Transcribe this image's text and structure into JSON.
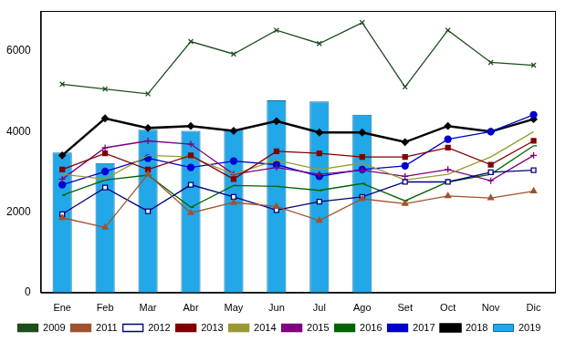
{
  "chart_data": {
    "type": "bar",
    "categories": [
      "Ene",
      "Feb",
      "Mar",
      "Abr",
      "May",
      "Jun",
      "Jul",
      "Ago",
      "Set",
      "Oct",
      "Nov",
      "Dic"
    ],
    "ylim": [
      0,
      7000
    ],
    "yticks": [
      0,
      2000,
      4000,
      6000
    ],
    "grid": false,
    "legend": "bottom",
    "series": [
      {
        "name": "2019",
        "type": "bar",
        "color": "#22a7e8",
        "values": [
          3480,
          3220,
          4050,
          4020,
          4050,
          4780,
          4750,
          4420,
          null,
          null,
          null,
          null
        ]
      },
      {
        "name": "2009",
        "type": "line",
        "color": "#1e4d1e",
        "marker": "cross",
        "values": [
          5180,
          5060,
          4940,
          6240,
          5930,
          6520,
          6190,
          6710,
          5110,
          6520,
          5720,
          5650
        ]
      },
      {
        "name": "2011",
        "type": "line",
        "color": "#a0522d",
        "marker": "triangle",
        "values": [
          1860,
          1620,
          2940,
          1980,
          2240,
          2140,
          1790,
          2330,
          2210,
          2400,
          2350,
          2520
        ]
      },
      {
        "name": "2012",
        "type": "line",
        "color": "#000080",
        "marker": "open_square",
        "values": [
          1950,
          2610,
          2020,
          2680,
          2380,
          2050,
          2260,
          2380,
          2750,
          2750,
          2990,
          3040
        ]
      },
      {
        "name": "2013",
        "type": "line",
        "color": "#800000",
        "marker": "square",
        "values": [
          3060,
          3460,
          3060,
          3410,
          2820,
          3510,
          3460,
          3370,
          3370,
          3600,
          3180,
          3770
        ]
      },
      {
        "name": "2014",
        "type": "line",
        "color": "#999933",
        "marker": "none",
        "values": [
          2940,
          2820,
          3410,
          3370,
          2940,
          3290,
          3060,
          3220,
          2800,
          2940,
          3370,
          4000
        ]
      },
      {
        "name": "2015",
        "type": "line",
        "color": "#800080",
        "marker": "plus",
        "values": [
          2820,
          3600,
          3770,
          3690,
          2940,
          3110,
          2940,
          3040,
          2890,
          3060,
          2780,
          3410
        ]
      },
      {
        "name": "2016",
        "type": "line",
        "color": "#006400",
        "marker": "dash",
        "values": [
          2420,
          2800,
          2920,
          2120,
          2660,
          2640,
          2540,
          2710,
          2280,
          2750,
          2940,
          3650
        ]
      },
      {
        "name": "2017",
        "type": "line",
        "color": "#0000cd",
        "marker": "circle",
        "values": [
          2680,
          3010,
          3340,
          3110,
          3270,
          3180,
          2890,
          3060,
          3150,
          3810,
          4000,
          4420
        ]
      },
      {
        "name": "2018",
        "type": "line",
        "color": "#000000",
        "marker": "diamond",
        "values": [
          3410,
          4330,
          4090,
          4140,
          4020,
          4260,
          3980,
          3980,
          3740,
          4140,
          4000,
          4310
        ]
      }
    ]
  }
}
